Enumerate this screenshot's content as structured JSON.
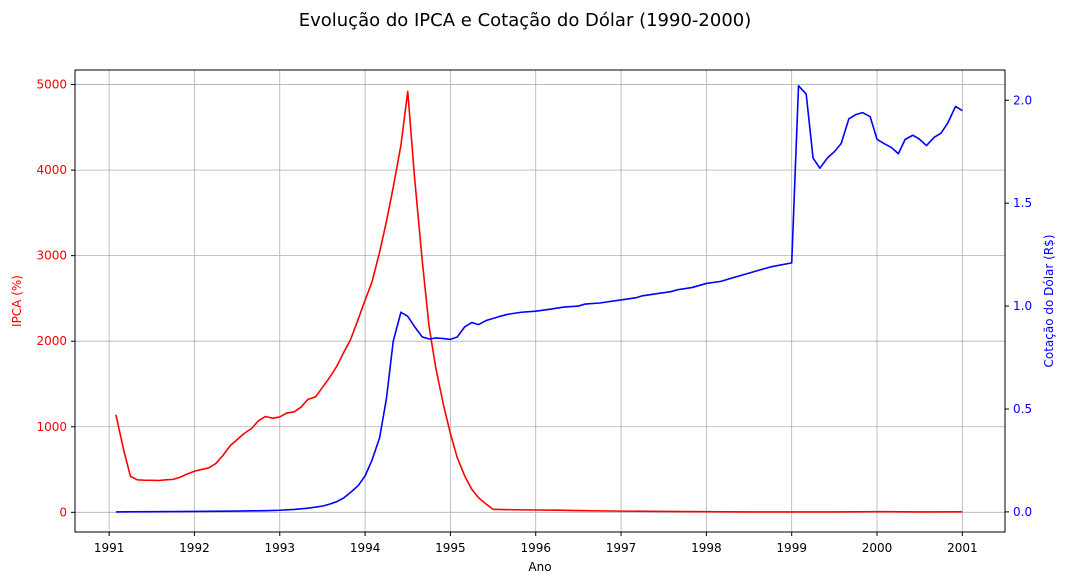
{
  "chart_data": {
    "type": "line",
    "title": "Evolução do IPCA e Cotação do Dólar (1990-2000)",
    "xlabel": "Ano",
    "ylabel_left": "IPCA (%)",
    "ylabel_right": "Cotação do Dólar (R$)",
    "xlim": [
      1990.6,
      2001.5
    ],
    "ylim_left": [
      -230,
      5170
    ],
    "ylim_right": [
      -0.0977,
      2.147
    ],
    "x_ticks": [
      1991,
      1992,
      1993,
      1994,
      1995,
      1996,
      1997,
      1998,
      1999,
      2000,
      2001
    ],
    "x_tick_labels": [
      "1991",
      "1992",
      "1993",
      "1994",
      "1995",
      "1996",
      "1997",
      "1998",
      "1999",
      "2000",
      "2001"
    ],
    "y_ticks_left": [
      0,
      1000,
      2000,
      3000,
      4000,
      5000
    ],
    "y_tick_labels_left": [
      "0",
      "1000",
      "2000",
      "3000",
      "4000",
      "5000"
    ],
    "y_ticks_right": [
      0.0,
      0.5,
      1.0,
      1.5,
      2.0
    ],
    "y_tick_labels_right": [
      "0.0",
      "0.5",
      "1.0",
      "1.5",
      "2.0"
    ],
    "grid": true,
    "colors": {
      "ipca": "#ff0000",
      "dolar": "#0000ff",
      "grid": "#b0b0b0"
    },
    "series": [
      {
        "axis": "left",
        "x": [
          1991.08,
          1991.17,
          1991.25,
          1991.33,
          1991.42,
          1991.5,
          1991.58,
          1991.67,
          1991.75,
          1991.83,
          1991.92,
          1992.0,
          1992.08,
          1992.17,
          1992.25,
          1992.33,
          1992.42,
          1992.5,
          1992.58,
          1992.67,
          1992.75,
          1992.83,
          1992.92,
          1993.0,
          1993.08,
          1993.17,
          1993.25,
          1993.33,
          1993.42,
          1993.5,
          1993.58,
          1993.67,
          1993.75,
          1993.83,
          1993.92,
          1994.0,
          1994.08,
          1994.17,
          1994.25,
          1994.33,
          1994.42,
          1994.5,
          1994.58,
          1994.67,
          1994.75,
          1994.83,
          1994.92,
          1995.0,
          1995.08,
          1995.17,
          1995.25,
          1995.33,
          1995.42,
          1995.5,
          1995.75,
          1996.0,
          1996.25,
          1996.5,
          1996.75,
          1997.0,
          1997.5,
          1998.0,
          1998.5,
          1999.0,
          1999.5,
          2000.0,
          2000.5,
          2001.0
        ],
        "values": [
          1140,
          730,
          420,
          380,
          375,
          375,
          372,
          380,
          385,
          410,
          450,
          480,
          500,
          520,
          570,
          660,
          780,
          850,
          920,
          980,
          1070,
          1120,
          1100,
          1115,
          1160,
          1175,
          1230,
          1320,
          1350,
          1460,
          1570,
          1710,
          1870,
          2020,
          2260,
          2480,
          2690,
          3040,
          3400,
          3800,
          4290,
          4920,
          3910,
          2940,
          2170,
          1680,
          1250,
          920,
          640,
          420,
          270,
          170,
          95,
          35,
          30,
          27,
          25,
          20,
          17,
          14,
          10,
          7,
          5,
          4,
          5,
          8,
          5,
          6
        ]
      },
      {
        "axis": "right",
        "x": [
          1991.08,
          1991.5,
          1992.0,
          1992.5,
          1992.83,
          1993.0,
          1993.17,
          1993.33,
          1993.5,
          1993.58,
          1993.67,
          1993.75,
          1993.83,
          1993.92,
          1994.0,
          1994.08,
          1994.17,
          1994.25,
          1994.33,
          1994.42,
          1994.5,
          1994.58,
          1994.67,
          1994.75,
          1994.83,
          1994.92,
          1995.0,
          1995.08,
          1995.17,
          1995.25,
          1995.33,
          1995.42,
          1995.58,
          1995.67,
          1995.83,
          1996.0,
          1996.17,
          1996.33,
          1996.5,
          1996.58,
          1996.75,
          1997.0,
          1997.17,
          1997.25,
          1997.42,
          1997.58,
          1997.67,
          1997.83,
          1998.0,
          1998.17,
          1998.33,
          1998.5,
          1998.58,
          1998.75,
          1999.0,
          1999.08,
          1999.17,
          1999.25,
          1999.33,
          1999.42,
          1999.5,
          1999.58,
          1999.67,
          1999.75,
          1999.83,
          1999.92,
          2000.0,
          2000.08,
          2000.17,
          2000.25,
          2000.33,
          2000.42,
          2000.5,
          2000.58,
          2000.67,
          2000.75,
          2000.83,
          2000.92,
          2001.0
        ],
        "values": [
          0.0,
          0.001,
          0.002,
          0.004,
          0.006,
          0.008,
          0.012,
          0.018,
          0.028,
          0.037,
          0.05,
          0.068,
          0.095,
          0.128,
          0.175,
          0.25,
          0.36,
          0.55,
          0.83,
          0.97,
          0.95,
          0.9,
          0.85,
          0.84,
          0.845,
          0.842,
          0.838,
          0.85,
          0.9,
          0.92,
          0.91,
          0.93,
          0.95,
          0.96,
          0.97,
          0.975,
          0.985,
          0.995,
          1.0,
          1.01,
          1.015,
          1.03,
          1.04,
          1.05,
          1.06,
          1.07,
          1.08,
          1.09,
          1.11,
          1.12,
          1.14,
          1.16,
          1.17,
          1.19,
          1.21,
          2.07,
          2.03,
          1.72,
          1.67,
          1.72,
          1.75,
          1.79,
          1.91,
          1.93,
          1.94,
          1.92,
          1.81,
          1.79,
          1.77,
          1.74,
          1.81,
          1.83,
          1.81,
          1.78,
          1.82,
          1.84,
          1.89,
          1.97,
          1.95
        ]
      }
    ]
  }
}
